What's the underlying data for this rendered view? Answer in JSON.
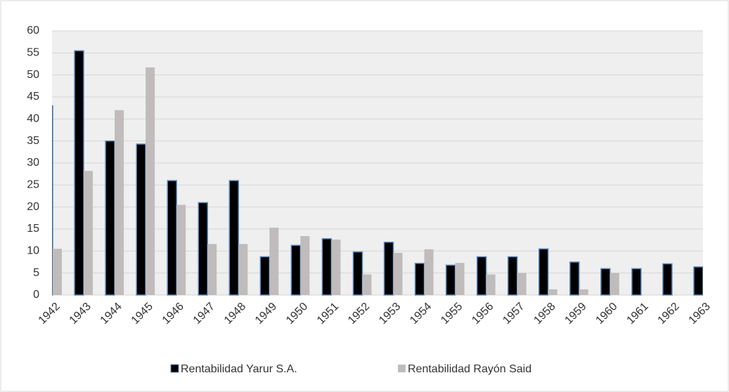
{
  "chart_data": {
    "type": "bar",
    "categories": [
      "1942",
      "1943",
      "1944",
      "1945",
      "1946",
      "1947",
      "1948",
      "1949",
      "1950",
      "1951",
      "1952",
      "1953",
      "1954",
      "1955",
      "1956",
      "1957",
      "1958",
      "1959",
      "1960",
      "1961",
      "1962",
      "1963"
    ],
    "series": [
      {
        "name": "Rentabilidad Yarur S.A.",
        "color": "#000000",
        "values": [
          43,
          55.5,
          35,
          34.3,
          26,
          21,
          26,
          8.7,
          11.3,
          12.8,
          9.8,
          12,
          7.2,
          6.8,
          8.7,
          8.7,
          10.5,
          7.5,
          6,
          6,
          7.1,
          6.4
        ]
      },
      {
        "name": "Rentabilidad Rayón Said",
        "color": "#c0bcbc",
        "values": [
          10.5,
          28.2,
          42,
          51.7,
          20.5,
          11.6,
          11.6,
          15.3,
          13.4,
          12.6,
          4.7,
          9.6,
          10.4,
          7.3,
          4.7,
          5,
          1.3,
          1.3,
          5,
          null,
          null,
          null
        ]
      }
    ],
    "ylim": [
      0,
      60
    ],
    "yticks": [
      0,
      5,
      10,
      15,
      20,
      25,
      30,
      35,
      40,
      45,
      50,
      55,
      60
    ],
    "grid": true,
    "legend": "bottom"
  }
}
